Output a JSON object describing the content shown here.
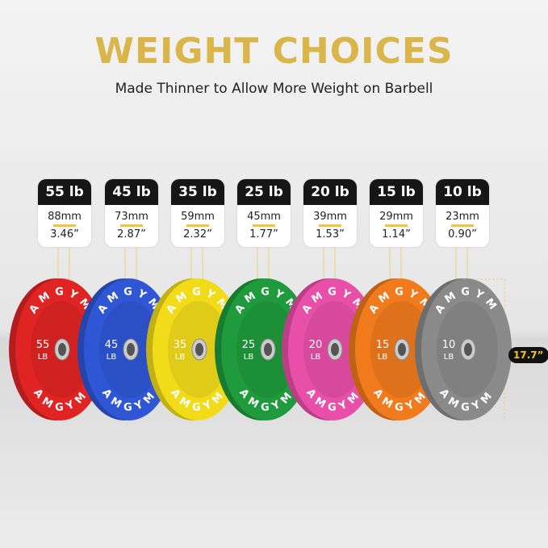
{
  "title": "WEIGHT CHOICES",
  "subtitle": "Made Thinner to Allow More Weight on Barbell",
  "brand": "AMGYM",
  "diameter": "17.7”",
  "plates": [
    {
      "weight": "55 lb",
      "mm": "88mm",
      "inch": "3.46”",
      "num": "55",
      "unit": "LB",
      "color": "#e02424"
    },
    {
      "weight": "45 lb",
      "mm": "73mm",
      "inch": "2.87”",
      "num": "45",
      "unit": "LB",
      "color": "#2f56d4"
    },
    {
      "weight": "35 lb",
      "mm": "59mm",
      "inch": "2.32”",
      "num": "35",
      "unit": "LB",
      "color": "#f2dc1a"
    },
    {
      "weight": "25 lb",
      "mm": "45mm",
      "inch": "1.77”",
      "num": "25",
      "unit": "LB",
      "color": "#1f9a3c"
    },
    {
      "weight": "20 lb",
      "mm": "39mm",
      "inch": "1.53”",
      "num": "20",
      "unit": "LB",
      "color": "#e84fa8"
    },
    {
      "weight": "15 lb",
      "mm": "29mm",
      "inch": "1.14”",
      "num": "15",
      "unit": "LB",
      "color": "#f07a1c"
    },
    {
      "weight": "10 lb",
      "mm": "23mm",
      "inch": "0.90”",
      "num": "10",
      "unit": "LB",
      "color": "#8a8a8a"
    }
  ]
}
